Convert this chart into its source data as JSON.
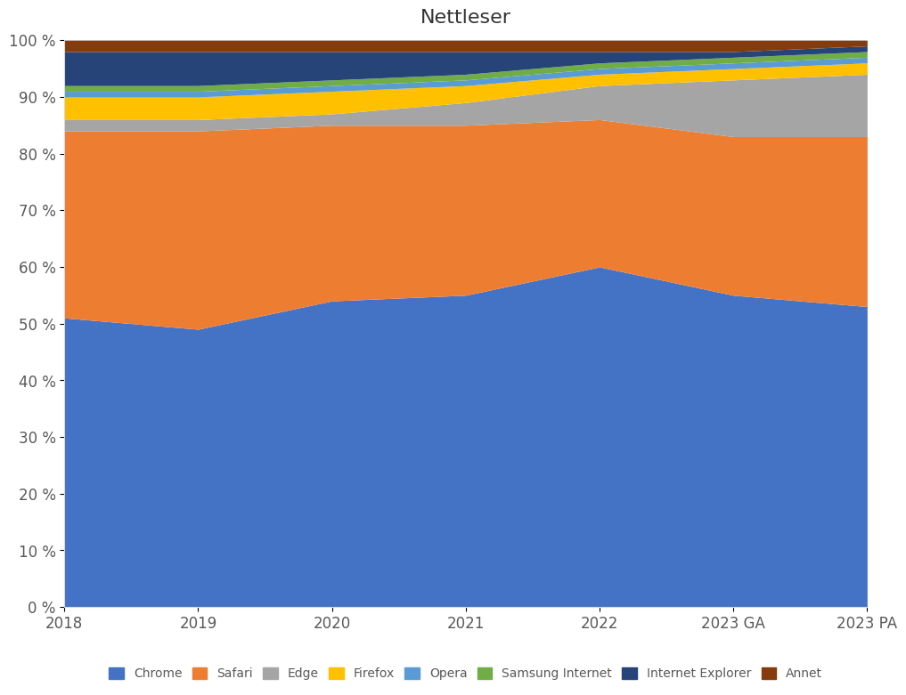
{
  "title": "Nettleser",
  "categories": [
    "2018",
    "2019",
    "2020",
    "2021",
    "2022",
    "2023 GA",
    "2023 PA"
  ],
  "series": {
    "Chrome": [
      51,
      49,
      54,
      55,
      60,
      55,
      53
    ],
    "Safari": [
      33,
      35,
      31,
      30,
      26,
      28,
      30
    ],
    "Edge": [
      2,
      2,
      2,
      4,
      6,
      10,
      11
    ],
    "Firefox": [
      4,
      4,
      4,
      3,
      2,
      2,
      2
    ],
    "Opera": [
      1,
      1,
      1,
      1,
      1,
      1,
      1
    ],
    "Samsung Internet": [
      1,
      1,
      1,
      1,
      1,
      1,
      1
    ],
    "Internet Explorer": [
      6,
      6,
      5,
      4,
      2,
      1,
      1
    ],
    "Annet": [
      2,
      2,
      2,
      2,
      2,
      2,
      1
    ]
  },
  "colors": {
    "Chrome": "#4472C4",
    "Safari": "#ED7D31",
    "Edge": "#A5A5A5",
    "Firefox": "#FFC000",
    "Opera": "#5B9BD5",
    "Samsung Internet": "#70AD47",
    "Internet Explorer": "#264478",
    "Annet": "#843C0C"
  },
  "legend_order": [
    "Chrome",
    "Safari",
    "Edge",
    "Firefox",
    "Opera",
    "Samsung Internet",
    "Internet Explorer",
    "Annet"
  ],
  "ylim": [
    0,
    100
  ],
  "background_color": "#ffffff",
  "title_fontsize": 16,
  "figsize": [
    10.24,
    7.96
  ],
  "dpi": 100
}
